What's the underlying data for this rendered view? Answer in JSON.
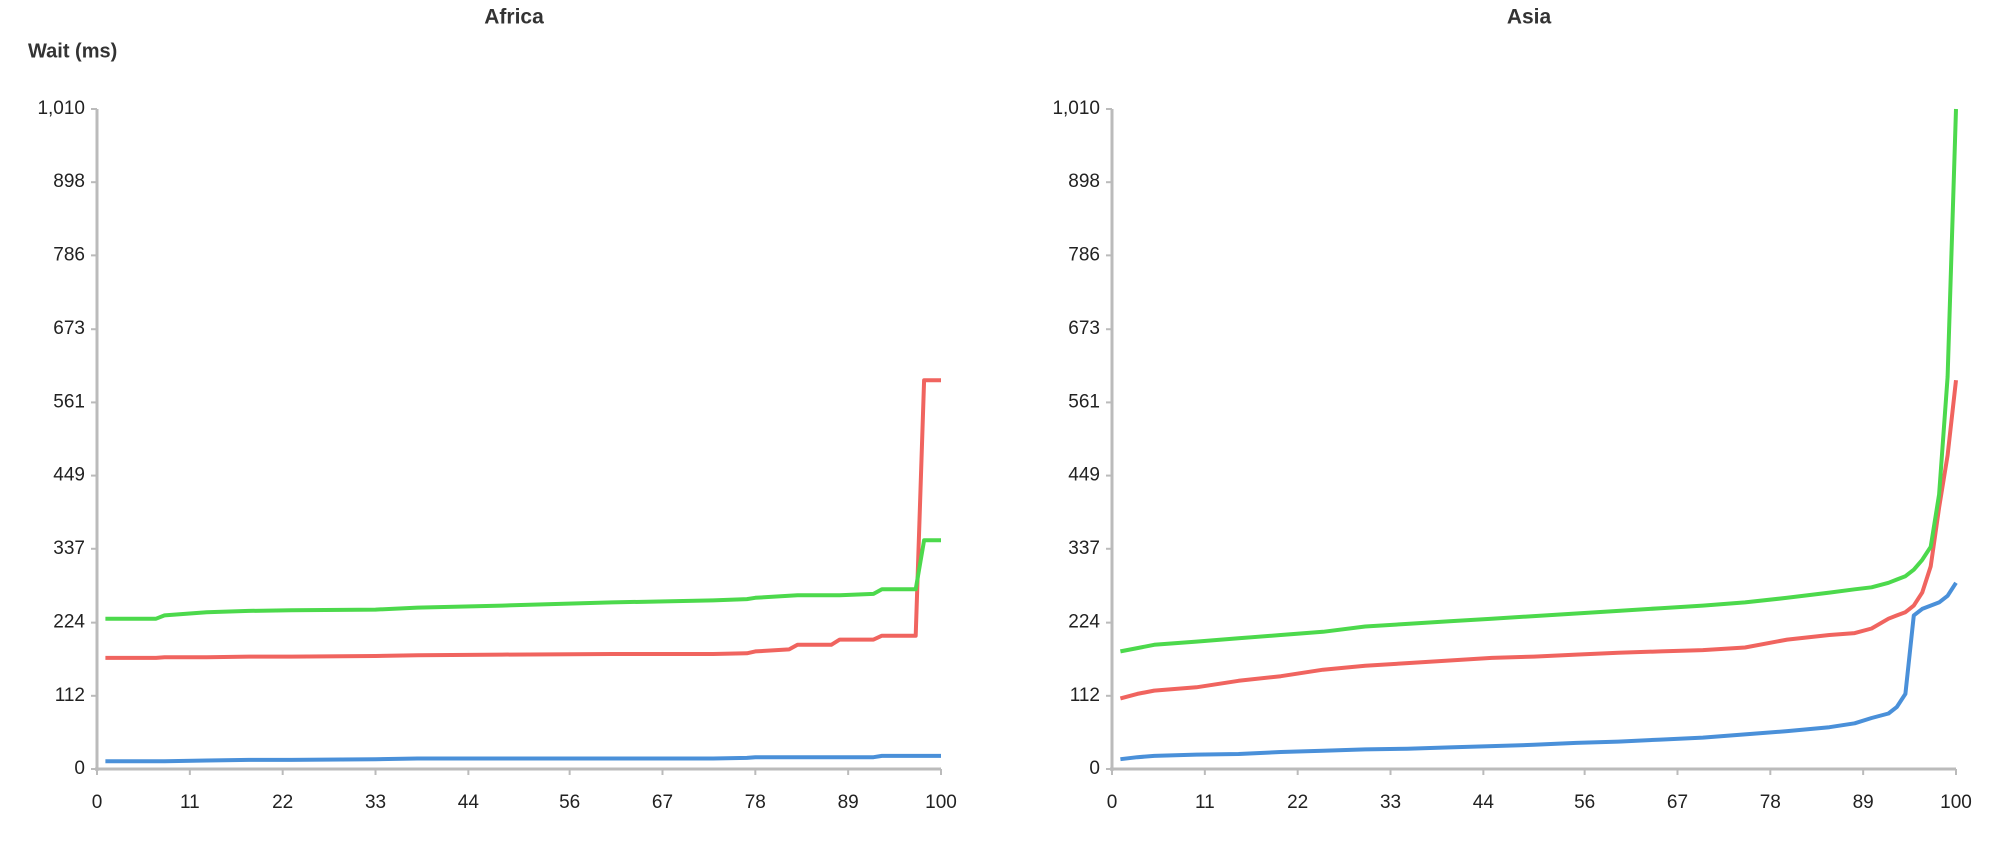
{
  "chart_data": [
    {
      "type": "line",
      "title": "Africa",
      "y_label": "Wait (ms)",
      "x": [
        1,
        7,
        8,
        13,
        18,
        23,
        33,
        38,
        48,
        61,
        73,
        77,
        78,
        82,
        83,
        87,
        88,
        92,
        93,
        96,
        97,
        98,
        100
      ],
      "series": [
        {
          "color": "#4a90d9",
          "values": [
            12,
            12,
            12,
            13,
            14,
            14,
            15,
            16,
            16,
            16,
            16,
            17,
            18,
            18,
            18,
            18,
            18,
            18,
            20,
            20,
            20,
            20,
            20
          ]
        },
        {
          "color": "#f0645f",
          "values": [
            170,
            170,
            171,
            171,
            172,
            172,
            173,
            174,
            175,
            176,
            176,
            177,
            180,
            183,
            190,
            190,
            198,
            198,
            204,
            204,
            204,
            595,
            595
          ]
        },
        {
          "color": "#4cd94c",
          "values": [
            230,
            230,
            235,
            240,
            242,
            243,
            244,
            247,
            250,
            255,
            258,
            260,
            262,
            265,
            266,
            266,
            266,
            268,
            275,
            275,
            275,
            350,
            350
          ]
        }
      ],
      "xlim": [
        0,
        100
      ],
      "xticks": [
        0,
        11,
        22,
        33,
        44,
        56,
        67,
        78,
        89,
        100
      ],
      "ylim": [
        0,
        1010
      ],
      "yticks": [
        0,
        112,
        224,
        337,
        449,
        561,
        673,
        786,
        898,
        {
          "value": 1010,
          "label": "1,010"
        }
      ]
    },
    {
      "type": "line",
      "title": "Asia",
      "x": [
        1,
        3,
        5,
        10,
        15,
        20,
        25,
        30,
        35,
        40,
        45,
        50,
        55,
        60,
        65,
        70,
        75,
        80,
        85,
        88,
        90,
        92,
        93,
        94,
        95,
        96,
        97,
        98,
        99,
        100
      ],
      "series": [
        {
          "color": "#4a90d9",
          "values": [
            15,
            18,
            20,
            22,
            23,
            26,
            28,
            30,
            31,
            33,
            35,
            37,
            40,
            42,
            45,
            48,
            53,
            58,
            64,
            70,
            78,
            85,
            95,
            115,
            235,
            245,
            250,
            255,
            265,
            285
          ]
        },
        {
          "color": "#f0645f",
          "values": [
            108,
            115,
            120,
            125,
            135,
            142,
            152,
            158,
            162,
            166,
            170,
            172,
            175,
            178,
            180,
            182,
            186,
            198,
            205,
            208,
            215,
            230,
            235,
            240,
            250,
            270,
            310,
            400,
            480,
            595
          ]
        },
        {
          "color": "#4cd94c",
          "values": [
            180,
            185,
            190,
            195,
            200,
            205,
            210,
            218,
            222,
            226,
            230,
            234,
            238,
            242,
            246,
            250,
            255,
            262,
            270,
            275,
            278,
            285,
            290,
            295,
            305,
            320,
            340,
            420,
            600,
            1010
          ]
        }
      ],
      "xlim": [
        0,
        100
      ],
      "xticks": [
        0,
        11,
        22,
        33,
        44,
        56,
        67,
        78,
        89,
        100
      ],
      "ylim": [
        0,
        1010
      ],
      "yticks": [
        0,
        112,
        224,
        337,
        449,
        561,
        673,
        786,
        898,
        {
          "value": 1010,
          "label": "1,010"
        }
      ]
    }
  ]
}
